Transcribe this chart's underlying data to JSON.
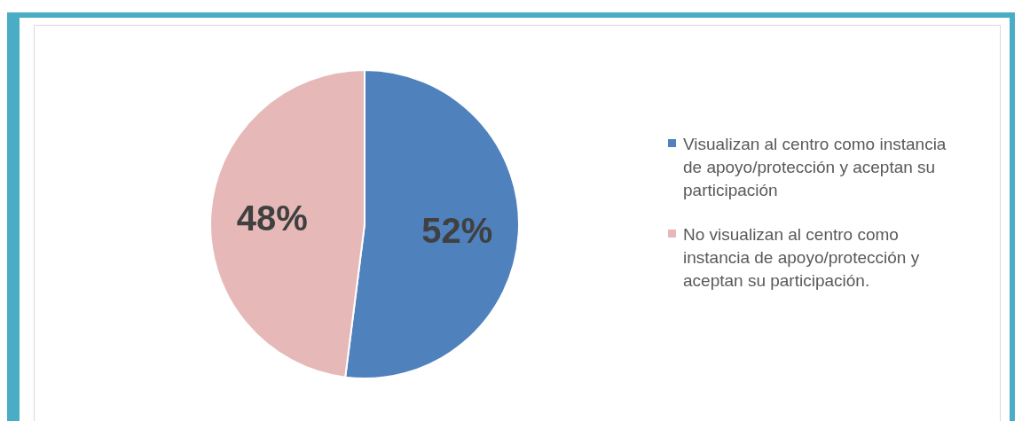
{
  "chart_data": {
    "type": "pie",
    "categories": [
      "Visualizan al centro como instancia de apoyo/protección y aceptan su participación",
      "No visualizan al centro como instancia de apoyo/protección y aceptan su participación."
    ],
    "values": [
      52,
      48
    ],
    "colors": [
      "#4f81bd",
      "#e6b9b8"
    ],
    "value_labels": [
      "52%",
      "48%"
    ],
    "legend": "right"
  }
}
